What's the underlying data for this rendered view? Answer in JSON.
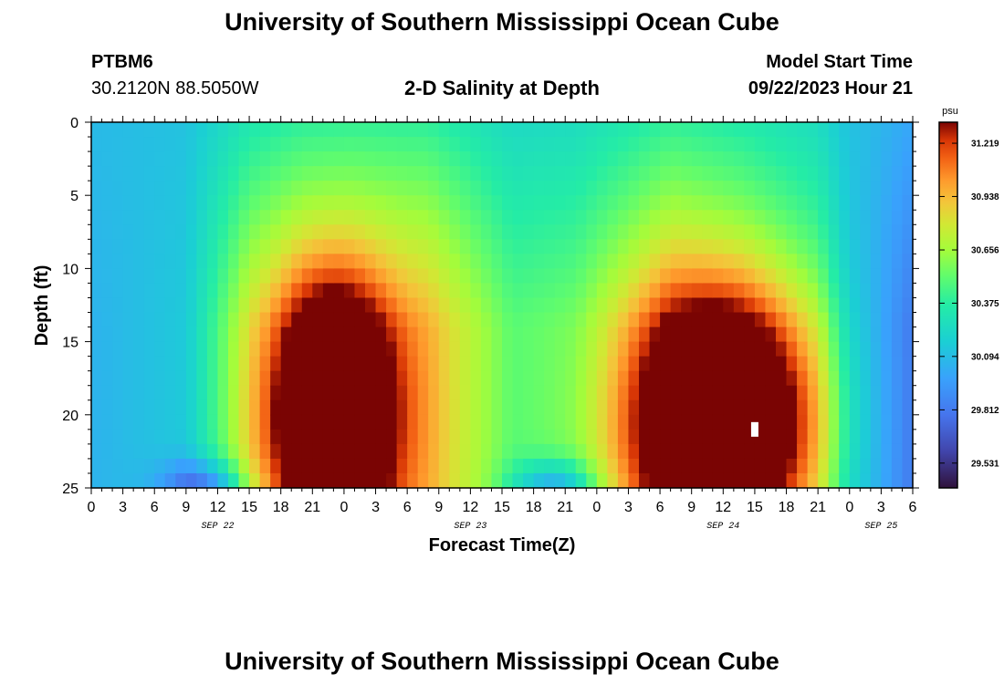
{
  "page": {
    "title_top": "University of Southern Mississippi Ocean Cube",
    "title_bottom": "University of Southern Mississippi Ocean Cube",
    "station_id": "PTBM6",
    "station_coords": "30.2120N  88.5050W",
    "plot_title": "2-D Salinity at Depth",
    "model_start_label": "Model Start Time",
    "model_start_value": "09/22/2023 Hour 21"
  },
  "chart_data": {
    "type": "heatmap",
    "title": "2-D Salinity at Depth",
    "xlabel": "Forecast Time(Z)",
    "ylabel": "Depth (ft)",
    "x_range_hours": [
      0,
      78
    ],
    "y_range_ft": [
      0,
      25
    ],
    "x_ticks": [
      {
        "hour": 0,
        "label": "0"
      },
      {
        "hour": 3,
        "label": "3"
      },
      {
        "hour": 6,
        "label": "6"
      },
      {
        "hour": 9,
        "label": "9"
      },
      {
        "hour": 12,
        "label": "12"
      },
      {
        "hour": 15,
        "label": "15"
      },
      {
        "hour": 18,
        "label": "18"
      },
      {
        "hour": 21,
        "label": "21"
      },
      {
        "hour": 24,
        "label": "0"
      },
      {
        "hour": 27,
        "label": "3"
      },
      {
        "hour": 30,
        "label": "6"
      },
      {
        "hour": 33,
        "label": "9"
      },
      {
        "hour": 36,
        "label": "12"
      },
      {
        "hour": 39,
        "label": "15"
      },
      {
        "hour": 42,
        "label": "18"
      },
      {
        "hour": 45,
        "label": "21"
      },
      {
        "hour": 48,
        "label": "0"
      },
      {
        "hour": 51,
        "label": "3"
      },
      {
        "hour": 54,
        "label": "6"
      },
      {
        "hour": 57,
        "label": "9"
      },
      {
        "hour": 60,
        "label": "12"
      },
      {
        "hour": 63,
        "label": "15"
      },
      {
        "hour": 66,
        "label": "18"
      },
      {
        "hour": 69,
        "label": "21"
      },
      {
        "hour": 72,
        "label": "0"
      },
      {
        "hour": 75,
        "label": "3"
      },
      {
        "hour": 78,
        "label": "6"
      }
    ],
    "date_labels": [
      {
        "hour": 12,
        "label": "SEP 22"
      },
      {
        "hour": 36,
        "label": "SEP 23"
      },
      {
        "hour": 60,
        "label": "SEP 24"
      },
      {
        "hour": 75,
        "label": "SEP 25"
      }
    ],
    "y_ticks": [
      0,
      5,
      10,
      15,
      20,
      25
    ],
    "colorbar": {
      "unit": "psu",
      "min": 29.4,
      "max": 31.33,
      "tick_values": [
        31.219,
        30.938,
        30.656,
        30.375,
        30.094,
        29.812,
        29.531
      ],
      "tick_labels": [
        "31.219",
        "30.938",
        "30.656",
        "30.375",
        "30.094",
        "29.812",
        "29.531"
      ]
    },
    "field": {
      "base": 30.1,
      "depth_ramp_min": 0.35,
      "profile_hours": [
        0,
        9,
        15,
        20,
        25,
        32,
        40,
        46,
        55,
        62,
        69,
        72,
        74,
        78
      ],
      "profile_values": [
        30.05,
        30.15,
        30.75,
        30.92,
        30.95,
        30.93,
        30.5,
        30.55,
        30.95,
        30.8,
        30.55,
        30.15,
        30.05,
        29.8
      ],
      "blobs": [
        {
          "hour": 23,
          "depth_ft": 20,
          "amp": 1.35,
          "sx_hours": 5.5,
          "sy_ft": 8.5
        },
        {
          "hour": 60,
          "depth_ft": 20.5,
          "amp": 1.45,
          "sx_hours": 8.0,
          "sy_ft": 8.0
        }
      ],
      "bottom_low_hours": [
        11,
        44
      ],
      "bottom_low_amp": 0.5
    },
    "marker": {
      "hour": 63,
      "depth_ft": 21,
      "color": "#ffffff"
    }
  }
}
